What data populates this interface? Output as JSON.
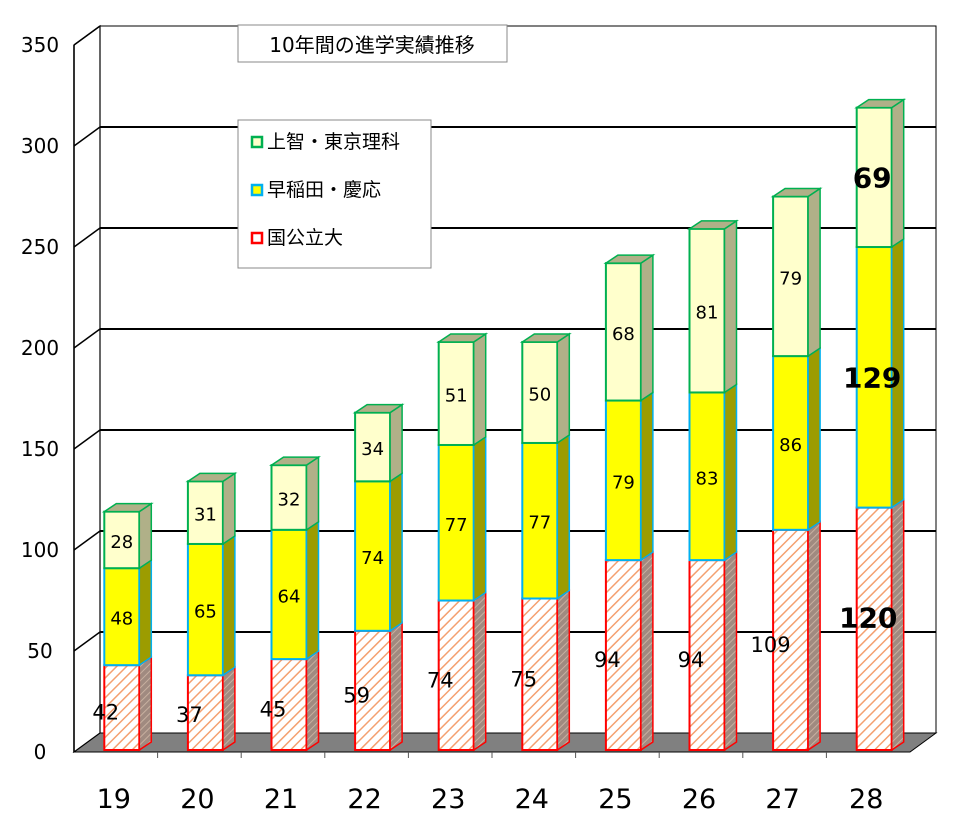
{
  "chart_data": {
    "type": "bar",
    "stacked": true,
    "three_d": true,
    "title": "10年間の進学実績推移",
    "categories": [
      "19",
      "20",
      "21",
      "22",
      "23",
      "24",
      "25",
      "26",
      "27",
      "28"
    ],
    "series": [
      {
        "name": "国公立大",
        "values": [
          42,
          37,
          45,
          59,
          74,
          75,
          94,
          94,
          109,
          120
        ],
        "fill": "#ffffff",
        "hatch": "#f4a070",
        "stroke": "#ff0000",
        "side": "#a08a80"
      },
      {
        "name": "早稲田・慶応",
        "values": [
          48,
          65,
          64,
          74,
          77,
          77,
          79,
          83,
          86,
          129
        ],
        "fill": "#ffff00",
        "stroke": "#00b0f0",
        "side": "#9c9c00"
      },
      {
        "name": "上智・東京理科",
        "values": [
          28,
          31,
          32,
          34,
          51,
          50,
          68,
          81,
          79,
          69
        ],
        "fill": "#ffffcc",
        "stroke": "#00b050",
        "side": "#b0b088"
      }
    ],
    "legend_order": [
      "上智・東京理科",
      "早稲田・慶応",
      "国公立大"
    ],
    "legend_position": "upper-left inside plot",
    "yticks": [
      0,
      50,
      100,
      150,
      200,
      250,
      300,
      350
    ],
    "ylim": [
      0,
      350
    ],
    "xlabel": "",
    "ylabel": "",
    "grid": true
  }
}
